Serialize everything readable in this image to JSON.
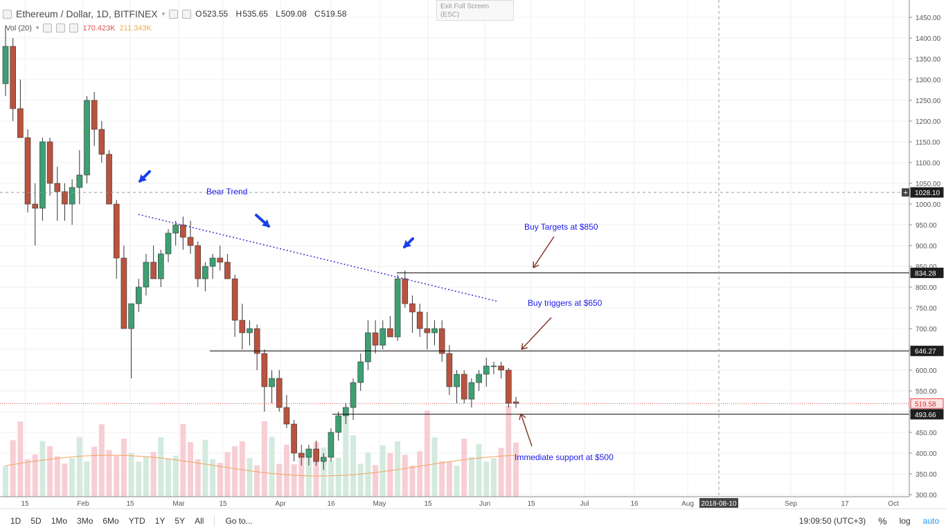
{
  "header": {
    "symbol": "Ethereum / Dollar, 1D, BITFINEX",
    "open_label": "O",
    "open": "523.55",
    "high_label": "H",
    "high": "535.65",
    "low_label": "L",
    "low": "509.08",
    "close_label": "C",
    "close": "519.58"
  },
  "volume": {
    "label": "Vol (20)",
    "value1": "170.423K",
    "value2": "211.343K"
  },
  "exit_fullscreen": {
    "line1": "Exit Full Screen",
    "line2": "(ESC)"
  },
  "price_scale": {
    "ticks": [
      "1450.00",
      "1400.00",
      "1350.00",
      "1300.00",
      "1250.00",
      "1200.00",
      "1150.00",
      "1100.00",
      "1050.00",
      "1000.00",
      "950.00",
      "900.00",
      "850.00",
      "800.00",
      "750.00",
      "700.00",
      "650.00",
      "600.00",
      "550.00",
      "500.00",
      "450.00",
      "400.00",
      "350.00",
      "300.00"
    ],
    "tick_values": [
      1450,
      1400,
      1350,
      1300,
      1250,
      1200,
      1150,
      1100,
      1050,
      1000,
      950,
      900,
      850,
      800,
      750,
      700,
      650,
      600,
      550,
      500,
      450,
      400,
      350,
      300
    ],
    "range": [
      300,
      1450
    ]
  },
  "price_labels": [
    {
      "value": 1028.1,
      "text": "1028.10",
      "style": "dark"
    },
    {
      "value": 834.28,
      "text": "834.28",
      "style": "dark"
    },
    {
      "value": 646.27,
      "text": "646.27",
      "style": "dark"
    },
    {
      "value": 519.58,
      "text": "519.58",
      "style": "red"
    },
    {
      "value": 493.66,
      "text": "493.66",
      "style": "dark"
    }
  ],
  "time_axis": {
    "labels": [
      "15",
      "Feb",
      "15",
      "Mar",
      "15",
      "Apr",
      "16",
      "May",
      "15",
      "Jun",
      "15",
      "Jul",
      "16",
      "Aug",
      "Sep",
      "17",
      "Oct"
    ],
    "crosshair_date": "2018-08-10"
  },
  "annotations": {
    "bear_trend": "Bear Trend",
    "buy_targets": "Buy Targets at $850",
    "buy_triggers": "Buy triggers at $650",
    "support": "Immediate support at $500"
  },
  "levels": {
    "target": 834.28,
    "trigger": 646.27,
    "support": 493.66,
    "crosshair": 1028.1,
    "last": 519.58
  },
  "trendline": {
    "start": 975,
    "end": 765
  },
  "colors": {
    "up": "#3f9f72",
    "down": "#b9533f",
    "annotation": "#1a1aee",
    "arrow_blue": "#1a3fe6",
    "arrow_brown": "#7b2e1e",
    "ma": "#f2a35e"
  },
  "bottom_bar": {
    "ranges": [
      "1D",
      "5D",
      "1Mo",
      "3Mo",
      "6Mo",
      "YTD",
      "1Y",
      "5Y",
      "All"
    ],
    "goto": "Go to...",
    "time": "19:09:50 (UTC+3)",
    "percent": "%",
    "log": "log",
    "auto": "auto"
  },
  "chart_data": {
    "type": "candlestick",
    "series": [
      {
        "name": "ETH/USD",
        "values": [
          [
            1290,
            1430,
            1260,
            1380
          ],
          [
            1380,
            1400,
            1200,
            1230
          ],
          [
            1230,
            1300,
            1170,
            1160
          ],
          [
            1160,
            1180,
            980,
            1000
          ],
          [
            1000,
            1050,
            900,
            990
          ],
          [
            990,
            1160,
            960,
            1150
          ],
          [
            1150,
            1160,
            1020,
            1050
          ],
          [
            1050,
            1090,
            960,
            1030
          ],
          [
            1030,
            1050,
            960,
            1000
          ],
          [
            1000,
            1060,
            950,
            1040
          ],
          [
            1040,
            1130,
            1000,
            1070
          ],
          [
            1070,
            1260,
            1050,
            1250
          ],
          [
            1250,
            1270,
            1140,
            1180
          ],
          [
            1180,
            1200,
            1100,
            1120
          ],
          [
            1120,
            1130,
            1000,
            1000
          ],
          [
            1000,
            1010,
            820,
            870
          ],
          [
            870,
            900,
            720,
            700
          ],
          [
            700,
            720,
            580,
            760
          ],
          [
            760,
            820,
            740,
            800
          ],
          [
            800,
            880,
            780,
            860
          ],
          [
            860,
            900,
            820,
            820
          ],
          [
            820,
            890,
            800,
            880
          ],
          [
            880,
            940,
            860,
            930
          ],
          [
            930,
            960,
            900,
            950
          ],
          [
            950,
            970,
            890,
            920
          ],
          [
            920,
            960,
            880,
            900
          ],
          [
            900,
            910,
            800,
            820
          ],
          [
            820,
            860,
            790,
            850
          ],
          [
            850,
            880,
            820,
            870
          ],
          [
            870,
            900,
            840,
            860
          ],
          [
            860,
            880,
            820,
            820
          ],
          [
            820,
            830,
            680,
            720
          ],
          [
            720,
            760,
            650,
            690
          ],
          [
            690,
            720,
            660,
            700
          ],
          [
            700,
            710,
            600,
            640
          ],
          [
            640,
            650,
            500,
            560
          ],
          [
            560,
            600,
            520,
            580
          ],
          [
            580,
            600,
            500,
            510
          ],
          [
            510,
            540,
            460,
            470
          ],
          [
            470,
            480,
            380,
            400
          ],
          [
            400,
            420,
            370,
            390
          ],
          [
            390,
            420,
            370,
            410
          ],
          [
            410,
            430,
            370,
            380
          ],
          [
            380,
            400,
            360,
            390
          ],
          [
            390,
            460,
            380,
            450
          ],
          [
            450,
            500,
            430,
            490
          ],
          [
            490,
            520,
            470,
            510
          ],
          [
            510,
            580,
            480,
            570
          ],
          [
            570,
            640,
            550,
            620
          ],
          [
            620,
            720,
            600,
            690
          ],
          [
            690,
            720,
            640,
            660
          ],
          [
            660,
            720,
            650,
            700
          ],
          [
            700,
            730,
            680,
            680
          ],
          [
            680,
            830,
            670,
            820
          ],
          [
            820,
            840,
            750,
            760
          ],
          [
            760,
            780,
            690,
            740
          ],
          [
            740,
            760,
            680,
            700
          ],
          [
            700,
            740,
            650,
            690
          ],
          [
            690,
            720,
            660,
            700
          ],
          [
            700,
            720,
            620,
            640
          ],
          [
            640,
            660,
            540,
            560
          ],
          [
            560,
            600,
            520,
            590
          ],
          [
            590,
            600,
            520,
            530
          ],
          [
            530,
            580,
            510,
            570
          ],
          [
            570,
            600,
            550,
            590
          ],
          [
            590,
            630,
            560,
            610
          ],
          [
            610,
            620,
            590,
            610
          ],
          [
            610,
            620,
            580,
            600
          ],
          [
            600,
            605,
            510,
            520
          ],
          [
            523.55,
            535.65,
            509.08,
            519.58
          ]
        ]
      }
    ],
    "ylim": [
      300,
      1450
    ]
  }
}
